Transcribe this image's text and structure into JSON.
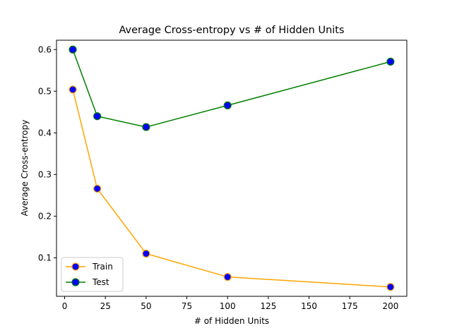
{
  "chart_data": {
    "type": "line",
    "title": "Average Cross-entropy vs # of Hidden Units",
    "xlabel": "# of Hidden Units",
    "ylabel": "Average Cross-entropy",
    "xlim": [
      -5,
      210
    ],
    "ylim": [
      0.0075,
      0.6225
    ],
    "xticks": [
      0,
      25,
      50,
      75,
      100,
      125,
      150,
      175,
      200
    ],
    "xtick_labels": [
      "0",
      "25",
      "50",
      "75",
      "100",
      "125",
      "150",
      "175",
      "200"
    ],
    "yticks": [
      0.1,
      0.2,
      0.3,
      0.4,
      0.5,
      0.6
    ],
    "ytick_labels": [
      "0.1",
      "0.2",
      "0.3",
      "0.4",
      "0.5",
      "0.6"
    ],
    "grid": false,
    "legend_position": "lower-left",
    "marker_face_color": "#0000ff",
    "series": [
      {
        "name": "Train",
        "color": "#ffa500",
        "x": [
          5,
          20,
          50,
          100,
          200
        ],
        "values": [
          0.504,
          0.266,
          0.11,
          0.054,
          0.03
        ]
      },
      {
        "name": "Test",
        "color": "#008000",
        "x": [
          5,
          20,
          50,
          100,
          200
        ],
        "values": [
          0.6,
          0.44,
          0.414,
          0.466,
          0.571
        ]
      }
    ]
  }
}
